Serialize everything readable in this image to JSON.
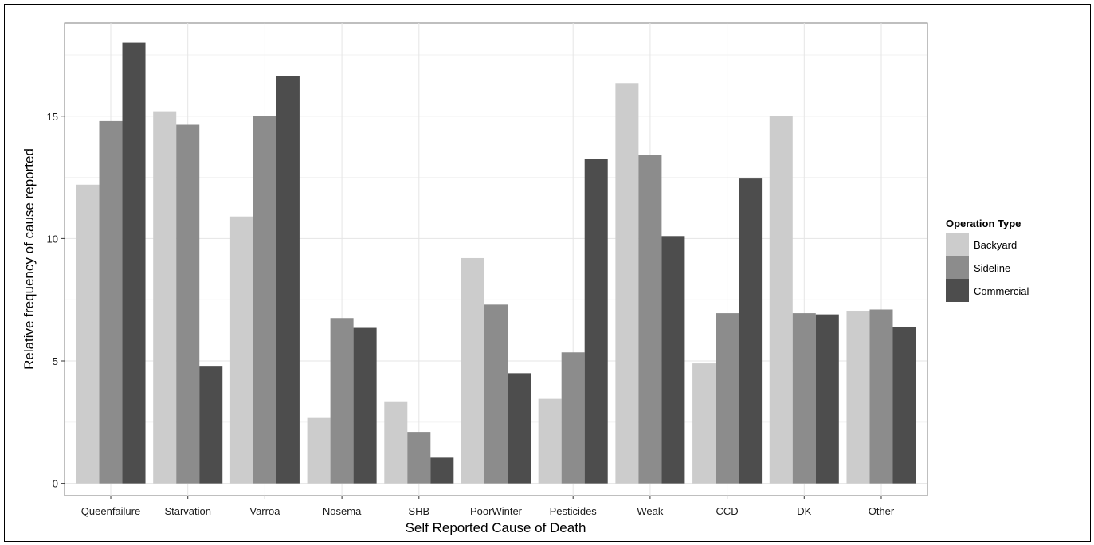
{
  "chart_data": {
    "type": "bar",
    "title": "",
    "xlabel": "Self Reported Cause of Death",
    "ylabel": "Relative frequency of cause reported",
    "ylim": [
      -0.5,
      18.8
    ],
    "yticks": [
      0,
      5,
      10,
      15
    ],
    "grid": true,
    "legend_position": "right",
    "legend_title": "Operation Type",
    "categories": [
      "Queenfailure",
      "Starvation",
      "Varroa",
      "Nosema",
      "SHB",
      "PoorWinter",
      "Pesticides",
      "Weak",
      "CCD",
      "DK",
      "Other"
    ],
    "series": [
      {
        "name": "Backyard",
        "color": "#cccccc",
        "values": [
          12.2,
          15.2,
          10.9,
          2.7,
          3.35,
          9.2,
          3.45,
          16.35,
          4.9,
          15.0,
          7.05
        ]
      },
      {
        "name": "Sideline",
        "color": "#8c8c8c",
        "values": [
          14.8,
          14.65,
          15.0,
          6.75,
          2.1,
          7.3,
          5.35,
          13.4,
          6.95,
          6.95,
          7.1
        ]
      },
      {
        "name": "Commercial",
        "color": "#4d4d4d",
        "values": [
          18.0,
          4.8,
          16.65,
          6.35,
          1.05,
          4.5,
          13.25,
          10.1,
          12.45,
          6.9,
          6.4
        ]
      }
    ]
  }
}
